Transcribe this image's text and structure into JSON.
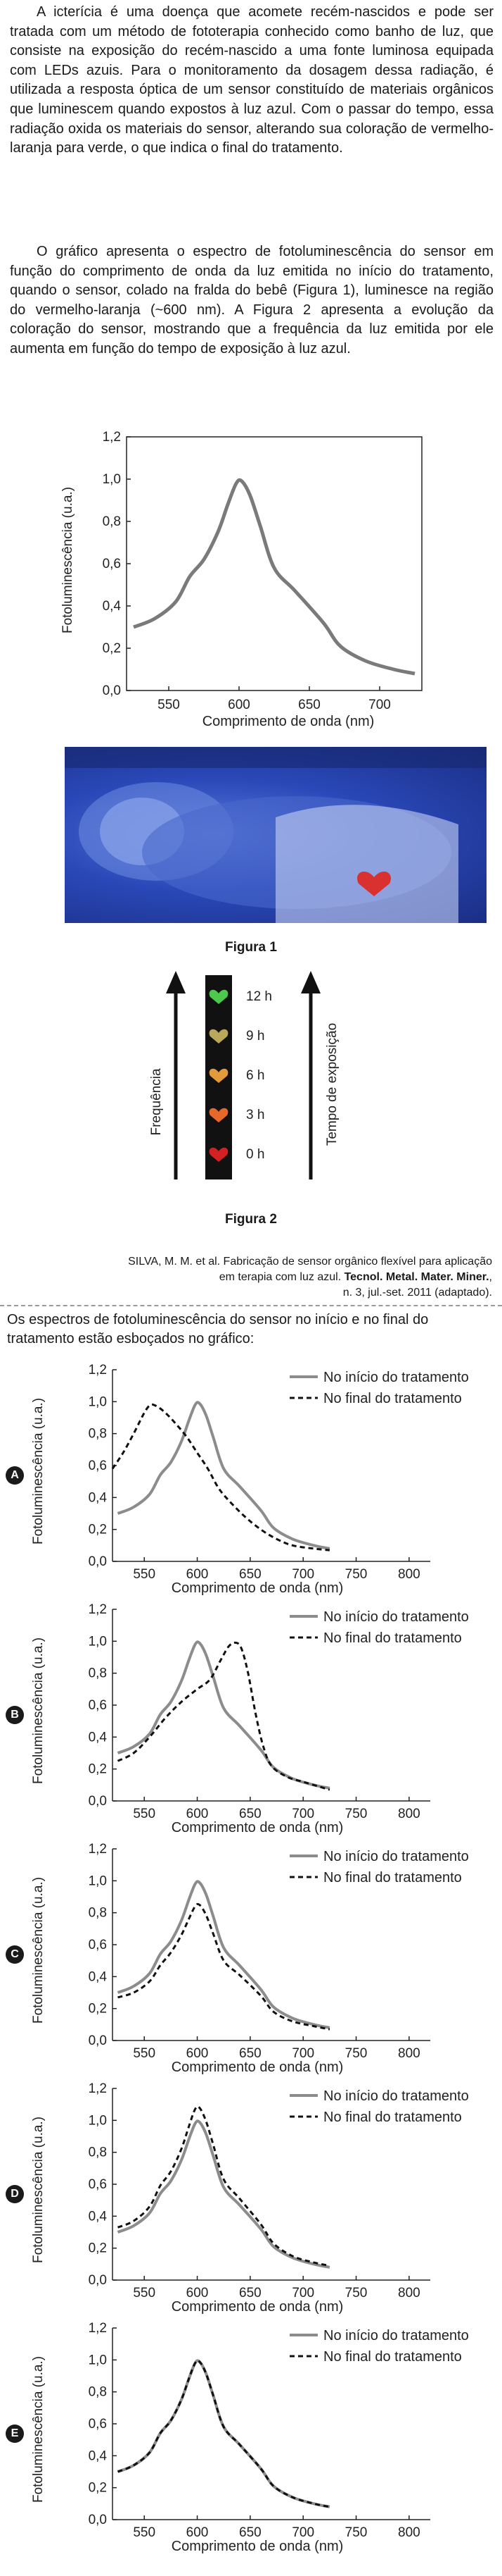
{
  "intro": {
    "paragraph1": "A icterícia é uma doença que acomete recém-nascidos e pode ser tratada com um método de fototerapia conhecido como banho de luz, que consiste na exposição do recém-nascido a uma fonte luminosa equipada com LEDs azuis. Para o monitoramento da dosagem dessa radiação, é utilizada a resposta óptica de um sensor constituído de materiais orgânicos que luminescem quando expostos à luz azul. Com o passar do tempo, essa radiação oxida os materiais do sensor, alterando sua coloração de vermelho-laranja para verde, o que indica o final do tratamento.",
    "paragraph2": "O gráfico apresenta o espectro de fotoluminescência do sensor em função do comprimento de onda da luz emitida no início do tratamento, quando o sensor, colado na fralda do bebê (Figura 1), luminesce na região do vermelho-laranja (~600 nm). A Figura 2 apresenta a evolução da coloração do sensor, mostrando que a frequência da luz emitida por ele aumenta em função do tempo de exposição à luz azul."
  },
  "main_chart": {
    "ylabel": "Fotoluminescência (u.a.)",
    "xlabel": "Comprimento de onda (nm)",
    "yticks": [
      "0,0",
      "0,2",
      "0,4",
      "0,6",
      "0,8",
      "1,0",
      "1,2"
    ],
    "xticks": [
      "550",
      "600",
      "650",
      "700"
    ],
    "line_color": "#7a7a7a"
  },
  "figure1": {
    "caption": "Figura 1",
    "heart_color": "#d93030"
  },
  "figure2": {
    "caption": "Figura 2",
    "left_label": "Frequência",
    "right_label": "Tempo de exposição",
    "steps": [
      {
        "time": "12 h",
        "color": "#4cc84a"
      },
      {
        "time": "9 h",
        "color": "#b9a85a"
      },
      {
        "time": "6 h",
        "color": "#e39a3a"
      },
      {
        "time": "3 h",
        "color": "#e8682a"
      },
      {
        "time": "0 h",
        "color": "#d42020"
      }
    ]
  },
  "source": {
    "line1": "SILVA, M. M. et al. Fabricação de sensor orgânico flexível para aplicação",
    "line2_plain": "em terapia com luz azul. ",
    "line2_bold": "Tecnol. Metal. Mater. Miner.",
    "line2_end": ",",
    "line3": "n. 3, jul.-set. 2011 (adaptado)."
  },
  "question": "Os espectros de fotoluminescência do sensor no início e no final do tratamento estão esboçados no gráfico:",
  "options_common": {
    "ylabel": "Fotoluminescência (u.a.)",
    "xlabel": "Comprimento de onda (nm)",
    "yticks": [
      "0,0",
      "0,2",
      "0,4",
      "0,6",
      "0,8",
      "1,0",
      "1,2"
    ],
    "xticks": [
      "550",
      "600",
      "650",
      "700",
      "750",
      "800"
    ],
    "legend_start": "No início do tratamento",
    "legend_end": "No final do tratamento"
  },
  "chart_data": [
    {
      "type": "line",
      "id": "main",
      "xlim": [
        520,
        730
      ],
      "ylim": [
        0,
        1.2
      ],
      "series": [
        {
          "x": [
            525,
            540,
            555,
            565,
            575,
            585,
            592,
            598,
            602,
            608,
            615,
            625,
            640,
            660,
            672,
            690,
            710,
            725
          ],
          "y": [
            0.3,
            0.34,
            0.42,
            0.54,
            0.62,
            0.75,
            0.88,
            0.98,
            0.99,
            0.92,
            0.78,
            0.58,
            0.47,
            0.32,
            0.21,
            0.14,
            0.1,
            0.08
          ]
        }
      ]
    },
    {
      "type": "line",
      "option": "A",
      "xlim": [
        520,
        820
      ],
      "ylim": [
        0,
        1.2
      ],
      "series": [
        {
          "name": "No início do tratamento",
          "x": [
            525,
            540,
            555,
            565,
            575,
            585,
            592,
            598,
            602,
            608,
            615,
            625,
            640,
            660,
            672,
            690,
            710,
            725
          ],
          "y": [
            0.3,
            0.34,
            0.42,
            0.54,
            0.62,
            0.75,
            0.88,
            0.98,
            0.99,
            0.92,
            0.78,
            0.58,
            0.47,
            0.32,
            0.21,
            0.14,
            0.1,
            0.08
          ]
        },
        {
          "name": "No final do tratamento",
          "x": [
            520,
            530,
            540,
            550,
            556,
            562,
            570,
            580,
            590,
            600,
            610,
            620,
            630,
            645,
            660,
            675,
            690,
            710,
            725
          ],
          "y": [
            0.58,
            0.68,
            0.8,
            0.93,
            0.98,
            0.97,
            0.93,
            0.86,
            0.78,
            0.68,
            0.58,
            0.46,
            0.38,
            0.28,
            0.2,
            0.14,
            0.1,
            0.08,
            0.07
          ]
        }
      ]
    },
    {
      "type": "line",
      "option": "B",
      "xlim": [
        520,
        820
      ],
      "ylim": [
        0,
        1.2
      ],
      "series": [
        {
          "name": "No início do tratamento",
          "x": [
            525,
            540,
            555,
            565,
            575,
            585,
            592,
            598,
            602,
            608,
            615,
            625,
            640,
            660,
            672,
            690,
            710,
            725
          ],
          "y": [
            0.3,
            0.34,
            0.42,
            0.54,
            0.62,
            0.75,
            0.88,
            0.98,
            0.99,
            0.92,
            0.78,
            0.58,
            0.47,
            0.32,
            0.21,
            0.14,
            0.1,
            0.08
          ]
        },
        {
          "name": "No final do tratamento",
          "x": [
            525,
            540,
            555,
            570,
            585,
            600,
            612,
            622,
            630,
            637,
            642,
            648,
            655,
            662,
            670,
            685,
            700,
            715,
            725
          ],
          "y": [
            0.25,
            0.3,
            0.4,
            0.52,
            0.62,
            0.7,
            0.76,
            0.88,
            0.97,
            0.99,
            0.95,
            0.8,
            0.55,
            0.35,
            0.22,
            0.15,
            0.12,
            0.09,
            0.07
          ]
        }
      ]
    },
    {
      "type": "line",
      "option": "C",
      "xlim": [
        520,
        820
      ],
      "ylim": [
        0,
        1.2
      ],
      "series": [
        {
          "name": "No início do tratamento",
          "x": [
            525,
            540,
            555,
            565,
            575,
            585,
            592,
            598,
            602,
            608,
            615,
            625,
            640,
            660,
            672,
            690,
            710,
            725
          ],
          "y": [
            0.3,
            0.34,
            0.42,
            0.54,
            0.62,
            0.75,
            0.88,
            0.98,
            0.99,
            0.92,
            0.78,
            0.58,
            0.47,
            0.32,
            0.21,
            0.14,
            0.1,
            0.08
          ]
        },
        {
          "name": "No final do tratamento",
          "x": [
            525,
            540,
            555,
            565,
            575,
            585,
            592,
            598,
            602,
            608,
            615,
            625,
            640,
            660,
            672,
            690,
            710,
            725
          ],
          "y": [
            0.27,
            0.3,
            0.37,
            0.47,
            0.55,
            0.66,
            0.76,
            0.84,
            0.85,
            0.79,
            0.67,
            0.5,
            0.41,
            0.28,
            0.18,
            0.12,
            0.09,
            0.07
          ]
        }
      ]
    },
    {
      "type": "line",
      "option": "D",
      "xlim": [
        520,
        820
      ],
      "ylim": [
        0,
        1.2
      ],
      "series": [
        {
          "name": "No início do tratamento",
          "x": [
            525,
            540,
            555,
            565,
            575,
            585,
            592,
            598,
            602,
            608,
            615,
            625,
            640,
            660,
            672,
            690,
            710,
            725
          ],
          "y": [
            0.3,
            0.34,
            0.42,
            0.54,
            0.62,
            0.75,
            0.88,
            0.98,
            0.99,
            0.92,
            0.78,
            0.58,
            0.47,
            0.32,
            0.21,
            0.14,
            0.1,
            0.08
          ]
        },
        {
          "name": "No final do tratamento",
          "x": [
            525,
            540,
            555,
            565,
            575,
            585,
            592,
            598,
            602,
            608,
            615,
            625,
            640,
            660,
            672,
            690,
            710,
            725
          ],
          "y": [
            0.33,
            0.37,
            0.46,
            0.59,
            0.68,
            0.82,
            0.96,
            1.07,
            1.08,
            1.0,
            0.85,
            0.63,
            0.51,
            0.35,
            0.23,
            0.15,
            0.11,
            0.09
          ]
        }
      ]
    },
    {
      "type": "line",
      "option": "E",
      "xlim": [
        520,
        820
      ],
      "ylim": [
        0,
        1.2
      ],
      "series": [
        {
          "name": "No início do tratamento",
          "x": [
            525,
            540,
            555,
            565,
            575,
            585,
            592,
            598,
            602,
            608,
            615,
            625,
            640,
            660,
            672,
            690,
            710,
            725
          ],
          "y": [
            0.3,
            0.34,
            0.42,
            0.54,
            0.62,
            0.75,
            0.88,
            0.98,
            0.99,
            0.92,
            0.78,
            0.58,
            0.47,
            0.32,
            0.21,
            0.14,
            0.1,
            0.08
          ]
        },
        {
          "name": "No final do tratamento",
          "x": [
            525,
            540,
            555,
            565,
            575,
            585,
            592,
            598,
            602,
            608,
            615,
            625,
            640,
            660,
            672,
            690,
            710,
            725
          ],
          "y": [
            0.3,
            0.34,
            0.42,
            0.54,
            0.62,
            0.75,
            0.88,
            0.98,
            0.99,
            0.92,
            0.78,
            0.58,
            0.47,
            0.32,
            0.21,
            0.14,
            0.1,
            0.08
          ]
        }
      ]
    }
  ]
}
